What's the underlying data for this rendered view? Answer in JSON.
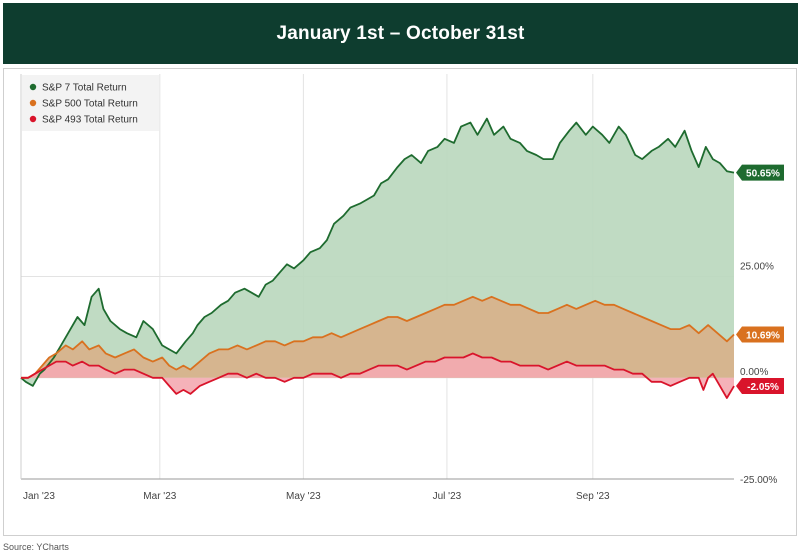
{
  "header": {
    "title": "January 1st – October 31st"
  },
  "source": "Source: YCharts",
  "chart_data": {
    "type": "line",
    "title": "January 1st – October 31st",
    "x_start": "2023-01-01",
    "x_end": "2023-10-31",
    "x_ticks": [
      {
        "label": "Jan '23",
        "day": 0
      },
      {
        "label": "Mar '23",
        "day": 59
      },
      {
        "label": "May '23",
        "day": 120
      },
      {
        "label": "Jul '23",
        "day": 181
      },
      {
        "label": "Sep '23",
        "day": 243
      }
    ],
    "y_ticks": [
      {
        "label": "25.00%",
        "value": 25
      },
      {
        "label": "0.00%",
        "value": 0
      },
      {
        "label": "-25.00%",
        "value": -25
      }
    ],
    "ylim": [
      -25,
      75
    ],
    "xlim_days": [
      0,
      303
    ],
    "legend_position": "top-left",
    "series": [
      {
        "name": "S&P 7 Total Return",
        "color": "#1e6b2f",
        "fill": "#b9d7bd",
        "end_label": "50.65%",
        "x_days": [
          0,
          2,
          5,
          8,
          10,
          14,
          17,
          20,
          24,
          27,
          30,
          33,
          35,
          38,
          42,
          45,
          49,
          52,
          56,
          60,
          63,
          66,
          70,
          73,
          75,
          78,
          81,
          85,
          88,
          91,
          95,
          98,
          101,
          104,
          107,
          110,
          113,
          116,
          120,
          123,
          127,
          130,
          133,
          137,
          140,
          144,
          147,
          150,
          153,
          156,
          160,
          163,
          166,
          170,
          173,
          177,
          180,
          184,
          187,
          191,
          194,
          198,
          201,
          205,
          208,
          212,
          215,
          219,
          222,
          226,
          229,
          233,
          236,
          240,
          243,
          247,
          250,
          254,
          257,
          261,
          264,
          268,
          271,
          275,
          278,
          282,
          285,
          288,
          291,
          294,
          297,
          300,
          303
        ],
        "values": [
          0,
          -1,
          -2,
          1,
          2,
          5,
          8,
          11,
          15,
          13,
          20,
          22,
          17,
          14,
          12,
          11,
          10,
          14,
          12,
          8,
          7,
          6,
          9,
          11,
          13,
          15,
          16,
          18,
          19,
          21,
          22,
          21,
          20,
          23,
          24,
          26,
          28,
          27,
          29,
          31,
          32,
          34,
          38,
          40,
          42,
          43,
          44,
          45,
          48,
          49,
          52,
          54,
          55,
          53,
          56,
          57,
          59,
          58,
          62,
          63,
          60,
          64,
          60,
          62,
          59,
          58,
          56,
          55,
          54,
          54,
          58,
          61,
          63,
          60,
          62,
          60,
          58,
          62,
          60,
          55,
          54,
          56,
          57,
          59,
          57,
          61,
          56,
          52,
          57,
          54,
          53,
          51,
          50.65
        ]
      },
      {
        "name": "S&P 500 Total Return",
        "color": "#d9711f",
        "fill": "#d8b08a",
        "end_label": "10.69%",
        "x_days": [
          0,
          3,
          6,
          9,
          12,
          15,
          19,
          22,
          26,
          29,
          33,
          36,
          40,
          44,
          48,
          52,
          56,
          60,
          63,
          66,
          69,
          72,
          76,
          80,
          84,
          88,
          92,
          96,
          100,
          104,
          108,
          112,
          116,
          120,
          124,
          128,
          132,
          136,
          140,
          144,
          148,
          152,
          156,
          160,
          164,
          168,
          172,
          176,
          180,
          184,
          188,
          192,
          196,
          200,
          204,
          208,
          212,
          216,
          220,
          224,
          228,
          232,
          236,
          240,
          244,
          248,
          252,
          256,
          260,
          264,
          268,
          272,
          276,
          280,
          284,
          288,
          292,
          296,
          300,
          303
        ],
        "values": [
          0,
          0,
          1,
          3,
          5,
          6,
          8,
          7,
          9,
          7,
          8,
          6,
          5,
          6,
          7,
          5,
          4,
          5,
          3,
          2,
          3,
          2,
          4,
          6,
          7,
          7,
          8,
          7,
          8,
          9,
          9,
          8,
          9,
          9,
          10,
          10,
          11,
          10,
          11,
          12,
          13,
          14,
          15,
          15,
          14,
          15,
          16,
          17,
          18,
          18,
          19,
          20,
          19,
          20,
          19,
          18,
          18,
          17,
          16,
          16,
          17,
          18,
          17,
          18,
          19,
          18,
          18,
          17,
          16,
          15,
          14,
          13,
          12,
          12,
          13,
          11,
          13,
          11,
          9,
          10.69
        ]
      },
      {
        "name": "S&P 493 Total Return",
        "color": "#d9142b",
        "fill": "#f4aab1",
        "end_label": "-2.05%",
        "x_days": [
          0,
          3,
          6,
          9,
          12,
          15,
          19,
          22,
          26,
          29,
          33,
          36,
          40,
          44,
          48,
          52,
          56,
          60,
          63,
          66,
          69,
          72,
          76,
          80,
          84,
          88,
          92,
          96,
          100,
          104,
          108,
          112,
          116,
          120,
          124,
          128,
          132,
          136,
          140,
          144,
          148,
          152,
          156,
          160,
          164,
          168,
          172,
          176,
          180,
          184,
          188,
          192,
          196,
          200,
          204,
          208,
          212,
          216,
          220,
          224,
          228,
          232,
          236,
          240,
          244,
          248,
          252,
          256,
          260,
          264,
          268,
          272,
          276,
          280,
          284,
          288,
          290,
          292,
          294,
          296,
          298,
          300,
          303
        ],
        "values": [
          0,
          0,
          1,
          2,
          3,
          4,
          4,
          3,
          4,
          3,
          3,
          2,
          1,
          2,
          2,
          1,
          0,
          0,
          -2,
          -4,
          -3,
          -4,
          -2,
          -1,
          0,
          1,
          1,
          0,
          1,
          0,
          0,
          -1,
          0,
          0,
          1,
          1,
          1,
          0,
          1,
          1,
          2,
          3,
          3,
          3,
          2,
          3,
          4,
          4,
          5,
          5,
          5,
          6,
          5,
          5,
          4,
          4,
          3,
          3,
          3,
          2,
          3,
          4,
          3,
          3,
          3,
          3,
          2,
          2,
          1,
          1,
          -1,
          -1,
          -2,
          -1,
          0,
          0,
          -3,
          0,
          1,
          -1,
          -3,
          -5,
          -2.05
        ]
      }
    ]
  }
}
